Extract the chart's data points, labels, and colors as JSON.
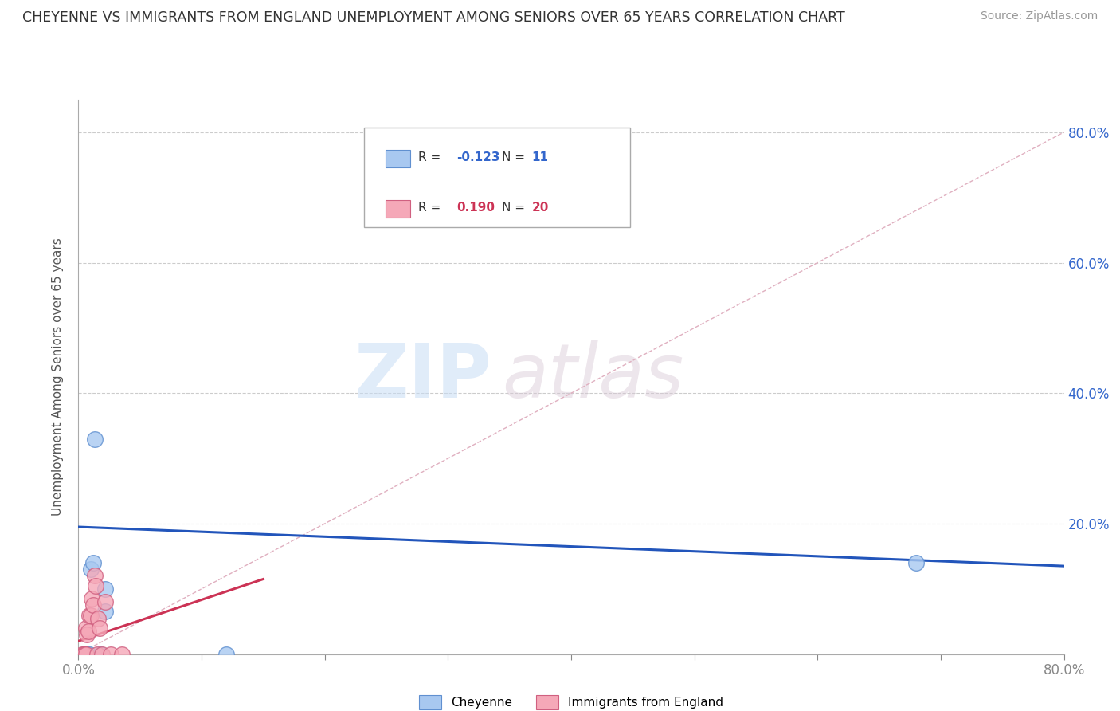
{
  "title": "CHEYENNE VS IMMIGRANTS FROM ENGLAND UNEMPLOYMENT AMONG SENIORS OVER 65 YEARS CORRELATION CHART",
  "source": "Source: ZipAtlas.com",
  "ylabel": "Unemployment Among Seniors over 65 years",
  "xlim": [
    0,
    0.8
  ],
  "ylim": [
    0,
    0.85
  ],
  "xticks": [
    0.0,
    0.1,
    0.2,
    0.3,
    0.4,
    0.5,
    0.6,
    0.7,
    0.8
  ],
  "yticks": [
    0.0,
    0.2,
    0.4,
    0.6,
    0.8
  ],
  "yticklabels": [
    "",
    "20.0%",
    "40.0%",
    "60.0%",
    "80.0%"
  ],
  "legend_r_blue": "-0.123",
  "legend_n_blue": "11",
  "legend_r_pink": "0.190",
  "legend_n_pink": "20",
  "cheyenne_color": "#a8c8f0",
  "cheyenne_edge": "#6090d0",
  "immigrants_color": "#f5a8b8",
  "immigrants_edge": "#d06080",
  "trend_blue_color": "#2255bb",
  "trend_pink_color": "#cc3355",
  "diag_color": "#e0b0c0",
  "watermark_zip": "ZIP",
  "watermark_atlas": "atlas",
  "cheyenne_x": [
    0.005,
    0.007,
    0.009,
    0.01,
    0.012,
    0.013,
    0.018,
    0.022,
    0.022,
    0.12,
    0.68
  ],
  "cheyenne_y": [
    0.0,
    0.0,
    0.0,
    0.13,
    0.14,
    0.33,
    0.0,
    0.065,
    0.1,
    0.0,
    0.14
  ],
  "immigrants_x": [
    0.003,
    0.004,
    0.005,
    0.006,
    0.006,
    0.007,
    0.008,
    0.009,
    0.01,
    0.011,
    0.012,
    0.013,
    0.014,
    0.015,
    0.016,
    0.017,
    0.019,
    0.022,
    0.026,
    0.035
  ],
  "immigrants_y": [
    0.0,
    0.0,
    0.0,
    0.0,
    0.04,
    0.03,
    0.035,
    0.06,
    0.06,
    0.085,
    0.075,
    0.12,
    0.105,
    0.0,
    0.055,
    0.04,
    0.0,
    0.08,
    0.0,
    0.0
  ],
  "blue_trend_x": [
    0.0,
    0.8
  ],
  "blue_trend_y": [
    0.195,
    0.135
  ],
  "pink_trend_x": [
    0.0,
    0.15
  ],
  "pink_trend_y": [
    0.02,
    0.115
  ]
}
